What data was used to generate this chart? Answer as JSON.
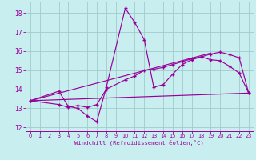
{
  "xlabel": "Windchill (Refroidissement éolien,°C)",
  "bg_color": "#c8eef0",
  "grid_color": "#a0cccc",
  "line_color": "#990099",
  "xlim": [
    -0.5,
    23.5
  ],
  "ylim": [
    11.8,
    18.6
  ],
  "yticks": [
    12,
    13,
    14,
    15,
    16,
    17,
    18
  ],
  "xticks": [
    0,
    1,
    2,
    3,
    4,
    5,
    6,
    7,
    8,
    9,
    10,
    11,
    12,
    13,
    14,
    15,
    16,
    17,
    18,
    19,
    20,
    21,
    22,
    23
  ],
  "series1_x": [
    0,
    3,
    4,
    5,
    6,
    7,
    8,
    10,
    11,
    12,
    13,
    14,
    15,
    16,
    17,
    18,
    19,
    20,
    21,
    22,
    23
  ],
  "series1_y": [
    13.4,
    13.9,
    13.1,
    13.0,
    12.6,
    12.3,
    14.1,
    18.25,
    17.5,
    16.6,
    14.1,
    14.25,
    14.8,
    15.3,
    15.55,
    15.7,
    15.55,
    15.5,
    15.2,
    14.85,
    13.8
  ],
  "series2_x": [
    0,
    3,
    4,
    5,
    6,
    7,
    8,
    10,
    11,
    12,
    13,
    14,
    15,
    16,
    17,
    18,
    19,
    20,
    21,
    22,
    23
  ],
  "series2_y": [
    13.4,
    13.2,
    13.05,
    13.15,
    13.05,
    13.2,
    14.0,
    14.5,
    14.7,
    15.0,
    15.05,
    15.15,
    15.3,
    15.45,
    15.6,
    15.7,
    15.85,
    15.95,
    15.82,
    15.65,
    13.8
  ],
  "series3_x": [
    0,
    23
  ],
  "series3_y": [
    13.4,
    13.8
  ],
  "series4_x": [
    0,
    19
  ],
  "series4_y": [
    13.4,
    15.9
  ]
}
